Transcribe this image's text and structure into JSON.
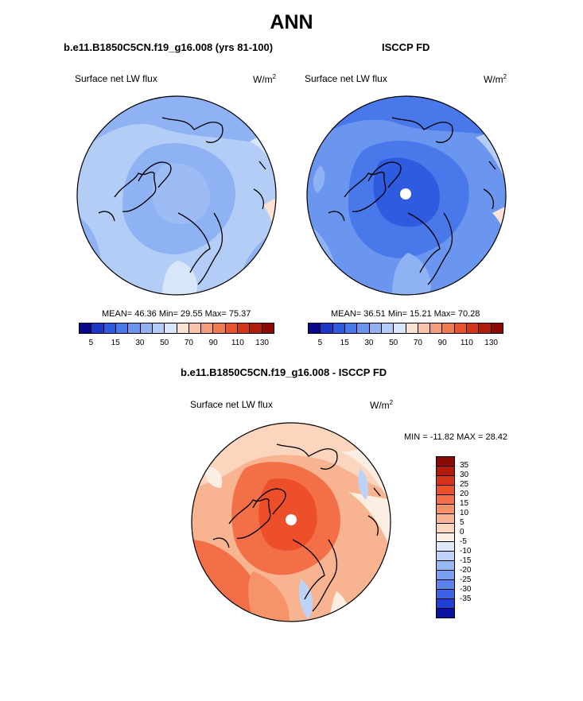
{
  "main_title": "ANN",
  "left_panel": {
    "title": "b.e11.B1850C5CN.f19_g16.008 (yrs 81-100)",
    "variable": "Surface net LW flux",
    "units": "W/m",
    "units_exp": "2",
    "stats": "MEAN=  46.36  Min=  29.55  Max=  75.37"
  },
  "right_panel": {
    "title": "ISCCP FD",
    "variable": "Surface net LW flux",
    "units": "W/m",
    "units_exp": "2",
    "stats": "MEAN=  36.51  Min=  15.21  Max=  70.28"
  },
  "colorbar_top": {
    "colors": [
      "#08088a",
      "#1c36c8",
      "#2f5be0",
      "#4878ea",
      "#6a96f0",
      "#8eb2f4",
      "#b4cdf7",
      "#d8e6fa",
      "#fce2d4",
      "#f8c3a8",
      "#f59d7a",
      "#f07a50",
      "#e7532e",
      "#d4351a",
      "#b01d0d",
      "#8a0a05"
    ],
    "tick_labels": [
      "5",
      "15",
      "30",
      "50",
      "70",
      "90",
      "110",
      "130"
    ]
  },
  "diff_panel": {
    "title": "b.e11.B1850C5CN.f19_g16.008 - ISCCP FD",
    "variable": "Surface net LW flux",
    "units": "W/m",
    "units_exp": "2",
    "stats": "MIN = -11.82 MAX =  28.42"
  },
  "colorbar_diff": {
    "colors": [
      "#8a0a05",
      "#b51a0c",
      "#d5321a",
      "#ec4f2a",
      "#f36f47",
      "#f69369",
      "#f8b390",
      "#fbd5bd",
      "#fdeee3",
      "#dde9fb",
      "#bcd2f8",
      "#98b8f4",
      "#7a9ef2",
      "#5b82ee",
      "#3c63e6",
      "#1f40d4",
      "#0a12a0"
    ],
    "tick_labels": [
      "35",
      "30",
      "25",
      "20",
      "15",
      "10",
      "5",
      "0",
      "-5",
      "-10",
      "-15",
      "-20",
      "-25",
      "-30",
      "-35"
    ]
  }
}
